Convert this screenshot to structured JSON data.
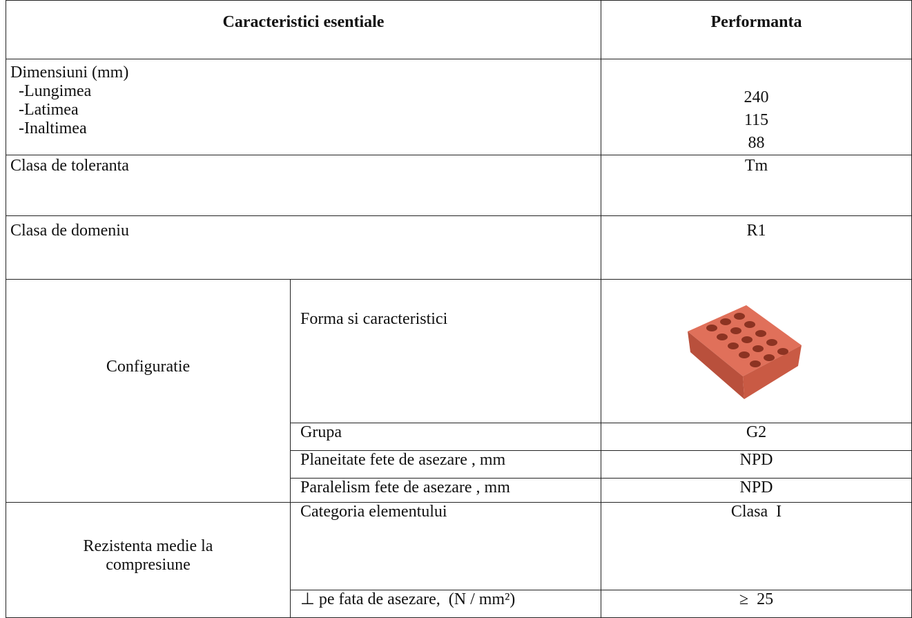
{
  "table": {
    "header": [
      "Caracteristici esentiale",
      "Performanta"
    ],
    "dimensions": {
      "label": "Dimensiuni (mm)",
      "items": [
        {
          "label": "-Lungimea",
          "value": 240
        },
        {
          "label": "-Latimea",
          "value": 115
        },
        {
          "label": "-Inaltimea",
          "value": 88
        }
      ]
    },
    "rows": [
      {
        "label": "Clasa de toleranta",
        "value": "Tm"
      },
      {
        "label": "Clasa de domeniu",
        "value": "R1"
      }
    ],
    "groups": [
      {
        "label": "Configuratie",
        "items": [
          {
            "label": "Forma si caracteristici"
          },
          {
            "label": "Grupa",
            "value": "G2"
          },
          {
            "label": "Planeitate fete de asezare , mm",
            "value": "NPD"
          },
          {
            "label": "Paralelism fete de asezare , mm",
            "value": "NPD"
          }
        ]
      },
      {
        "label": "Rezistenta medie la compresiune",
        "items": [
          {
            "label": "Categoria elementului",
            "value": "Clasa  I"
          },
          {
            "label": "⊥ pe fata de asezare,  (N / mm²)",
            "value": "≥  25"
          }
        ]
      }
    ]
  }
}
